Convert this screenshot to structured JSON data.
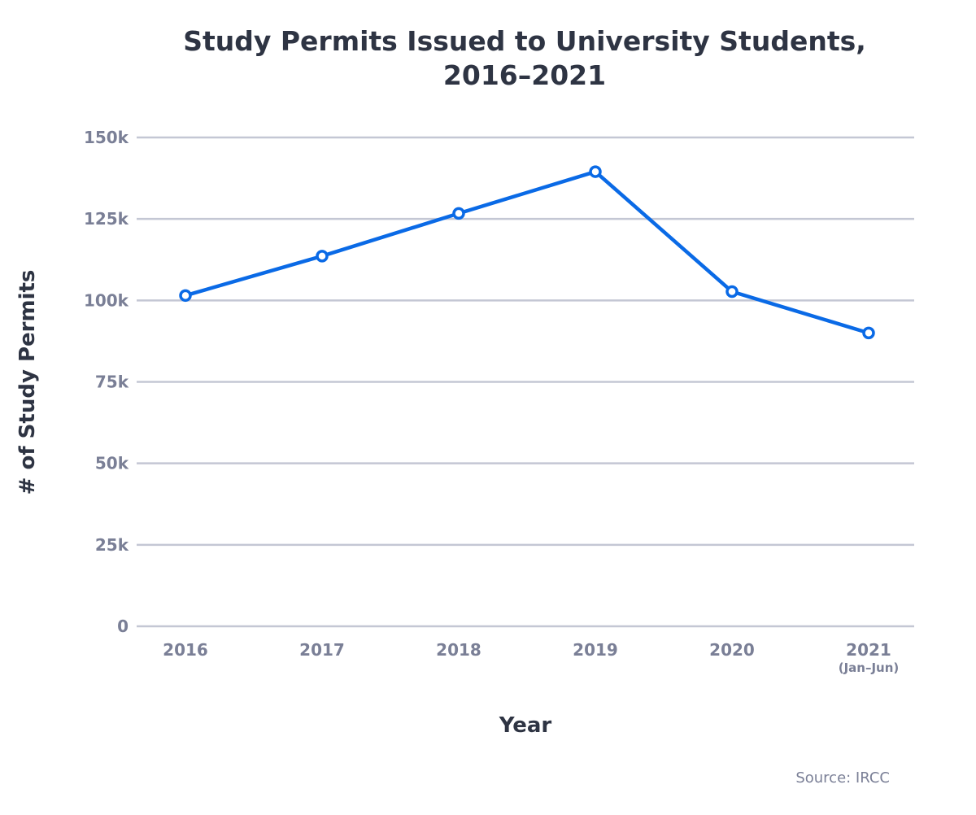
{
  "chart_data": {
    "type": "line",
    "title": "Study Permits Issued to University Students, 2016–2021",
    "title_lines": [
      "Study Permits Issued to University Students,",
      "2016–2021"
    ],
    "xlabel": "Year",
    "ylabel": "# of Study Permits",
    "categories": [
      "2016",
      "2017",
      "2018",
      "2019",
      "2020",
      "2021"
    ],
    "category_sublabels": [
      "",
      "",
      "",
      "",
      "",
      "(Jan–Jun)"
    ],
    "values": [
      101500,
      113600,
      126700,
      139500,
      102700,
      90000
    ],
    "ylim": [
      0,
      150000
    ],
    "yticks": [
      0,
      25000,
      50000,
      75000,
      100000,
      125000,
      150000
    ],
    "ytick_labels": [
      "0",
      "25k",
      "50k",
      "75k",
      "100k",
      "125k",
      "150k"
    ],
    "grid": true,
    "legend": "none",
    "line_color": "#0a6ae6",
    "grid_color": "#c4c7d4",
    "source": "Source: IRCC"
  }
}
